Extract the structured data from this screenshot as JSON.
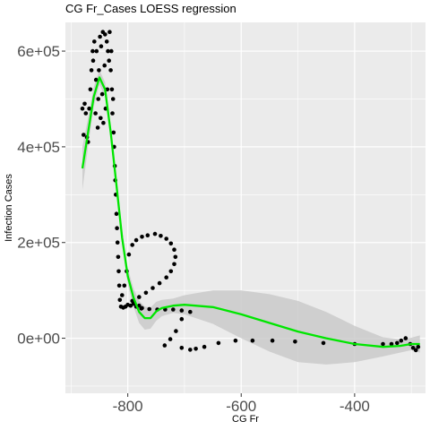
{
  "chart_data": {
    "type": "scatter",
    "title": "CG Fr_Cases LOESS regression",
    "xlabel": "CG Fr",
    "ylabel": "Infection Cases",
    "xlim": [
      -910,
      -275
    ],
    "ylim": [
      -115000,
      660000
    ],
    "x_ticks": [
      -800,
      -600,
      -400
    ],
    "x_tick_labels": [
      "-800",
      "-600",
      "-400"
    ],
    "y_ticks": [
      0,
      200000,
      400000,
      600000
    ],
    "y_tick_labels": [
      "0e+00",
      "2e+05",
      "4e+05",
      "6e+05"
    ],
    "grid": true,
    "legend": "none",
    "colors": {
      "panel": "#ebebeb",
      "grid": "#ffffff",
      "points": "#000000",
      "fit": "#00e600",
      "band": "#c8c8c8"
    },
    "points": [
      {
        "x": -880,
        "y": 480000
      },
      {
        "x": -878,
        "y": 425000
      },
      {
        "x": -876,
        "y": 490000
      },
      {
        "x": -874,
        "y": 470000
      },
      {
        "x": -872,
        "y": 420000
      },
      {
        "x": -870,
        "y": 410000
      },
      {
        "x": -868,
        "y": 480000
      },
      {
        "x": -866,
        "y": 520000
      },
      {
        "x": -864,
        "y": 560000
      },
      {
        "x": -862,
        "y": 600000
      },
      {
        "x": -861,
        "y": 580000
      },
      {
        "x": -859,
        "y": 620000
      },
      {
        "x": -857,
        "y": 470000
      },
      {
        "x": -856,
        "y": 540000
      },
      {
        "x": -855,
        "y": 600000
      },
      {
        "x": -853,
        "y": 440000
      },
      {
        "x": -852,
        "y": 500000
      },
      {
        "x": -851,
        "y": 560000
      },
      {
        "x": -849,
        "y": 630000
      },
      {
        "x": -848,
        "y": 460000
      },
      {
        "x": -847,
        "y": 610000
      },
      {
        "x": -845,
        "y": 510000
      },
      {
        "x": -844,
        "y": 640000
      },
      {
        "x": -843,
        "y": 450000
      },
      {
        "x": -841,
        "y": 570000
      },
      {
        "x": -840,
        "y": 635000
      },
      {
        "x": -839,
        "y": 480000
      },
      {
        "x": -837,
        "y": 620000
      },
      {
        "x": -836,
        "y": 520000
      },
      {
        "x": -835,
        "y": 600000
      },
      {
        "x": -833,
        "y": 580000
      },
      {
        "x": -832,
        "y": 640000
      },
      {
        "x": -830,
        "y": 560000
      },
      {
        "x": -829,
        "y": 600000
      },
      {
        "x": -828,
        "y": 520000
      },
      {
        "x": -827,
        "y": 470000
      },
      {
        "x": -826,
        "y": 500000
      },
      {
        "x": -825,
        "y": 430000
      },
      {
        "x": -824,
        "y": 400000
      },
      {
        "x": -823,
        "y": 360000
      },
      {
        "x": -822,
        "y": 330000
      },
      {
        "x": -821,
        "y": 300000
      },
      {
        "x": -820,
        "y": 260000
      },
      {
        "x": -819,
        "y": 230000
      },
      {
        "x": -818,
        "y": 200000
      },
      {
        "x": -817,
        "y": 170000
      },
      {
        "x": -816,
        "y": 140000
      },
      {
        "x": -815,
        "y": 110000
      },
      {
        "x": -814,
        "y": 80000
      },
      {
        "x": -812,
        "y": 66000
      },
      {
        "x": -808,
        "y": 64000
      },
      {
        "x": -804,
        "y": 66000
      },
      {
        "x": -800,
        "y": 70000
      },
      {
        "x": -795,
        "y": 68000
      },
      {
        "x": -790,
        "y": 72000
      },
      {
        "x": -785,
        "y": 66000
      },
      {
        "x": -780,
        "y": 68000
      },
      {
        "x": -775,
        "y": 63000
      },
      {
        "x": -810,
        "y": 90000
      },
      {
        "x": -806,
        "y": 110000
      },
      {
        "x": -802,
        "y": 140000
      },
      {
        "x": -798,
        "y": 175000
      },
      {
        "x": -792,
        "y": 195000
      },
      {
        "x": -785,
        "y": 205000
      },
      {
        "x": -775,
        "y": 212000
      },
      {
        "x": -765,
        "y": 215000
      },
      {
        "x": -752,
        "y": 218000
      },
      {
        "x": -742,
        "y": 214000
      },
      {
        "x": -732,
        "y": 208000
      },
      {
        "x": -724,
        "y": 198000
      },
      {
        "x": -718,
        "y": 185000
      },
      {
        "x": -716,
        "y": 170000
      },
      {
        "x": -718,
        "y": 155000
      },
      {
        "x": -724,
        "y": 140000
      },
      {
        "x": -732,
        "y": 127000
      },
      {
        "x": -744,
        "y": 115000
      },
      {
        "x": -756,
        "y": 105000
      },
      {
        "x": -768,
        "y": 95000
      },
      {
        "x": -780,
        "y": 86000
      },
      {
        "x": -792,
        "y": 78000
      },
      {
        "x": -776,
        "y": 62000
      },
      {
        "x": -762,
        "y": 61000
      },
      {
        "x": -748,
        "y": 60000
      },
      {
        "x": -734,
        "y": 60000
      },
      {
        "x": -720,
        "y": 60000
      },
      {
        "x": -705,
        "y": 58000
      },
      {
        "x": -690,
        "y": 55000
      },
      {
        "x": -705,
        "y": 40000
      },
      {
        "x": -715,
        "y": 15000
      },
      {
        "x": -725,
        "y": -2000
      },
      {
        "x": -735,
        "y": -15000
      },
      {
        "x": -705,
        "y": -20000
      },
      {
        "x": -690,
        "y": -24000
      },
      {
        "x": -680,
        "y": -22000
      },
      {
        "x": -665,
        "y": -18000
      },
      {
        "x": -640,
        "y": -10000
      },
      {
        "x": -610,
        "y": -5000
      },
      {
        "x": -580,
        "y": -5000
      },
      {
        "x": -545,
        "y": -5000
      },
      {
        "x": -505,
        "y": -7000
      },
      {
        "x": -455,
        "y": -10000
      },
      {
        "x": -400,
        "y": -12000
      },
      {
        "x": -350,
        "y": -12000
      },
      {
        "x": -335,
        "y": -12000
      },
      {
        "x": -325,
        "y": -10000
      },
      {
        "x": -318,
        "y": -5000
      },
      {
        "x": -310,
        "y": 0
      },
      {
        "x": -302,
        "y": -12000
      },
      {
        "x": -297,
        "y": -20000
      },
      {
        "x": -292,
        "y": -25000
      },
      {
        "x": -288,
        "y": -18000
      }
    ],
    "fit": [
      {
        "x": -880,
        "y": 355000
      },
      {
        "x": -870,
        "y": 430000
      },
      {
        "x": -860,
        "y": 505000
      },
      {
        "x": -850,
        "y": 545000
      },
      {
        "x": -840,
        "y": 520000
      },
      {
        "x": -830,
        "y": 430000
      },
      {
        "x": -820,
        "y": 320000
      },
      {
        "x": -810,
        "y": 210000
      },
      {
        "x": -800,
        "y": 130000
      },
      {
        "x": -790,
        "y": 85000
      },
      {
        "x": -780,
        "y": 55000
      },
      {
        "x": -770,
        "y": 42000
      },
      {
        "x": -760,
        "y": 42000
      },
      {
        "x": -750,
        "y": 56000
      },
      {
        "x": -740,
        "y": 63000
      },
      {
        "x": -720,
        "y": 68000
      },
      {
        "x": -700,
        "y": 70000
      },
      {
        "x": -650,
        "y": 65000
      },
      {
        "x": -600,
        "y": 50000
      },
      {
        "x": -550,
        "y": 32000
      },
      {
        "x": -500,
        "y": 14000
      },
      {
        "x": -450,
        "y": 0
      },
      {
        "x": -400,
        "y": -12000
      },
      {
        "x": -350,
        "y": -18000
      },
      {
        "x": -320,
        "y": -16000
      },
      {
        "x": -300,
        "y": -12000
      },
      {
        "x": -285,
        "y": -12000
      }
    ],
    "band": [
      {
        "x": -880,
        "lo": 310000,
        "hi": 400000
      },
      {
        "x": -870,
        "lo": 400000,
        "hi": 460000
      },
      {
        "x": -860,
        "lo": 485000,
        "hi": 525000
      },
      {
        "x": -850,
        "lo": 530000,
        "hi": 560000
      },
      {
        "x": -840,
        "lo": 505000,
        "hi": 535000
      },
      {
        "x": -830,
        "lo": 415000,
        "hi": 445000
      },
      {
        "x": -820,
        "lo": 305000,
        "hi": 335000
      },
      {
        "x": -810,
        "lo": 195000,
        "hi": 225000
      },
      {
        "x": -800,
        "lo": 113000,
        "hi": 147000
      },
      {
        "x": -790,
        "lo": 66000,
        "hi": 104000
      },
      {
        "x": -780,
        "lo": 32000,
        "hi": 78000
      },
      {
        "x": -770,
        "lo": 18000,
        "hi": 66000
      },
      {
        "x": -760,
        "lo": 20000,
        "hi": 64000
      },
      {
        "x": -750,
        "lo": 36000,
        "hi": 76000
      },
      {
        "x": -740,
        "lo": 46000,
        "hi": 80000
      },
      {
        "x": -720,
        "lo": 53000,
        "hi": 83000
      },
      {
        "x": -700,
        "lo": 50000,
        "hi": 90000
      },
      {
        "x": -650,
        "lo": 30000,
        "hi": 100000
      },
      {
        "x": -600,
        "lo": 0,
        "hi": 100000
      },
      {
        "x": -550,
        "lo": -28000,
        "hi": 92000
      },
      {
        "x": -500,
        "lo": -50000,
        "hi": 78000
      },
      {
        "x": -450,
        "lo": -55000,
        "hi": 55000
      },
      {
        "x": -400,
        "lo": -50000,
        "hi": 26000
      },
      {
        "x": -350,
        "lo": -38000,
        "hi": 2000
      },
      {
        "x": -320,
        "lo": -30000,
        "hi": -2000
      },
      {
        "x": -300,
        "lo": -25000,
        "hi": 1000
      },
      {
        "x": -285,
        "lo": -30000,
        "hi": 6000
      }
    ]
  }
}
